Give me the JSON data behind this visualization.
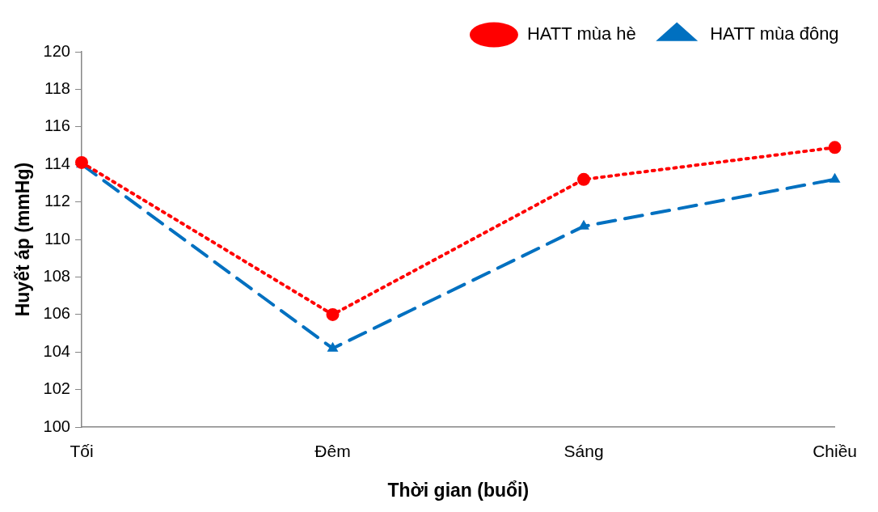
{
  "chart_data": {
    "type": "line",
    "xlabel": "Thời gian (buổi)",
    "ylabel": "Huyết áp (mmHg)",
    "categories": [
      "Tối",
      "Đêm",
      "Sáng",
      "Chiều"
    ],
    "series": [
      {
        "name": "HATT mùa hè",
        "color": "#ff0000",
        "values": [
          114.1,
          106.0,
          113.2,
          114.9
        ],
        "marker": "circle",
        "line_style": "dotted"
      },
      {
        "name": "HATT mùa đông",
        "color": "#0070c0",
        "values": [
          114.0,
          104.2,
          110.7,
          113.2
        ],
        "marker": "triangle",
        "line_style": "dashed"
      }
    ],
    "ylim": [
      100,
      120
    ],
    "yticks": [
      100,
      102,
      104,
      106,
      108,
      110,
      112,
      114,
      116,
      118,
      120
    ],
    "grid": false,
    "legend": "top right"
  }
}
